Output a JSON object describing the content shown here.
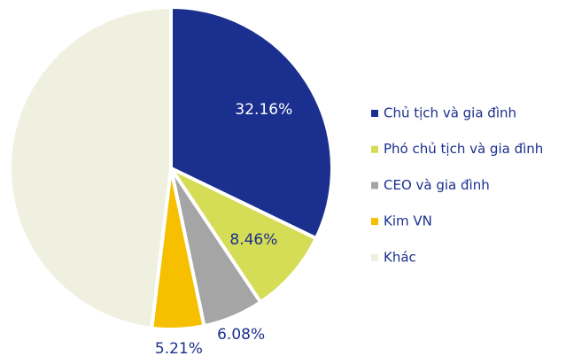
{
  "chart_data": {
    "type": "pie",
    "categories": [
      "Chủ tịch và gia đình",
      "Phó chủ tịch và gia đình",
      "CEO và gia đình",
      "Kim VN",
      "Khác"
    ],
    "values": [
      32.16,
      8.46,
      6.08,
      5.21,
      48.09
    ],
    "value_labels": [
      "32.16%",
      "8.46%",
      "6.08%",
      "5.21%",
      null
    ],
    "colors": [
      "#1b2f8e",
      "#d5dc55",
      "#a5a5a5",
      "#f6bf00",
      "#eff0e0"
    ],
    "legend": "right"
  }
}
